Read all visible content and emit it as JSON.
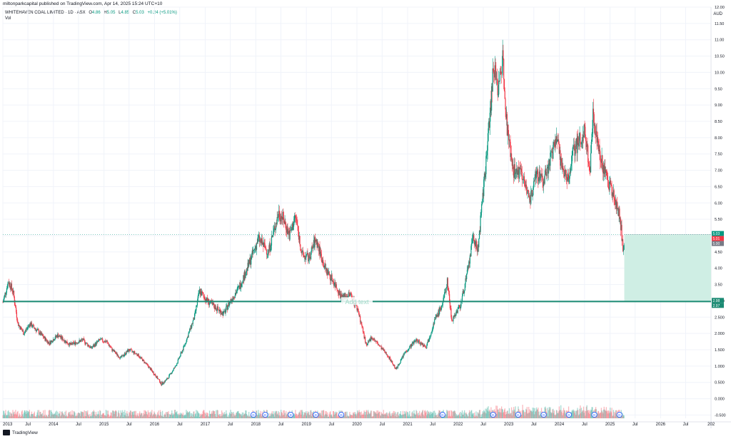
{
  "header": {
    "published": "miltonparkcapital published on TradingView.com, Apr 14, 2025 15:24 UTC+10"
  },
  "legend": {
    "symbol": "WHITEHAVEN COAL LIMITED · 1D · ASX",
    "open_label": "O",
    "open": "4.86",
    "high_label": "H",
    "high": "5.05",
    "low_label": "L",
    "low": "4.85",
    "close_label": "C",
    "close": "5.03",
    "change": "+0.24 (+5.01%)",
    "volume_label": "Vol"
  },
  "currency": "AUD",
  "colors": {
    "up": "#089981",
    "down": "#f23645",
    "line": "#1b8a73",
    "zone": "#cfeee4"
  },
  "icons": [
    "dividend-marker-icon",
    "tradingview-logo-icon"
  ],
  "chart_data": {
    "type": "candlestick",
    "title": "WHITEHAVEN COAL LIMITED · 1D · ASX",
    "x_range": [
      "2013-01-01",
      "2026-12-31"
    ],
    "y_range": [
      -0.6,
      12.0
    ],
    "y_ticks": [
      -0.5,
      0.0,
      0.5,
      1.0,
      1.5,
      2.0,
      2.5,
      3.0,
      3.5,
      4.0,
      4.5,
      5.0,
      5.5,
      6.0,
      6.5,
      7.0,
      7.5,
      8.0,
      8.5,
      9.0,
      9.5,
      10.0,
      10.5,
      11.0,
      11.5,
      12.0
    ],
    "y_tick_labels": [
      "-0.500",
      "0.000",
      "0.500",
      "1.000",
      "1.500",
      "2.000",
      "2.500",
      "3.000",
      "3.50",
      "4.00",
      "4.50",
      "5.00",
      "5.50",
      "6.00",
      "6.50",
      "7.00",
      "7.50",
      "8.00",
      "8.50",
      "9.00",
      "9.50",
      "10.00",
      "10.50",
      "11.00",
      "11.50",
      "12.00"
    ],
    "x_ticks": [
      {
        "date": "2013-01-01",
        "label": "2013"
      },
      {
        "date": "2013-07-01",
        "label": "Jul"
      },
      {
        "date": "2014-01-01",
        "label": "2014"
      },
      {
        "date": "2014-07-01",
        "label": "Jul"
      },
      {
        "date": "2015-01-01",
        "label": "2015"
      },
      {
        "date": "2015-07-01",
        "label": "Jul"
      },
      {
        "date": "2016-01-01",
        "label": "2016"
      },
      {
        "date": "2016-07-01",
        "label": "Jul"
      },
      {
        "date": "2017-01-01",
        "label": "2017"
      },
      {
        "date": "2017-07-01",
        "label": "Jul"
      },
      {
        "date": "2018-01-01",
        "label": "2018"
      },
      {
        "date": "2018-07-01",
        "label": "Jul"
      },
      {
        "date": "2019-01-01",
        "label": "2019"
      },
      {
        "date": "2019-07-01",
        "label": "Jul"
      },
      {
        "date": "2020-01-01",
        "label": "2020"
      },
      {
        "date": "2020-07-01",
        "label": "Jul"
      },
      {
        "date": "2021-01-01",
        "label": "2021"
      },
      {
        "date": "2021-07-01",
        "label": "Jul"
      },
      {
        "date": "2022-01-01",
        "label": "2022"
      },
      {
        "date": "2022-07-01",
        "label": "Jul"
      },
      {
        "date": "2023-01-01",
        "label": "2023"
      },
      {
        "date": "2023-07-01",
        "label": "Jul"
      },
      {
        "date": "2024-01-01",
        "label": "2024"
      },
      {
        "date": "2024-07-01",
        "label": "Jul"
      },
      {
        "date": "2025-01-01",
        "label": "2025"
      },
      {
        "date": "2025-07-01",
        "label": "Jul"
      },
      {
        "date": "2026-01-01",
        "label": "2026"
      },
      {
        "date": "2026-07-01",
        "label": "Jul"
      },
      {
        "date": "2027-01-01",
        "label": "202"
      }
    ],
    "price_path": [
      [
        "2013-01-01",
        2.95
      ],
      [
        "2013-02-10",
        3.6
      ],
      [
        "2013-03-15",
        3.3
      ],
      [
        "2013-04-20",
        2.3
      ],
      [
        "2013-06-01",
        2.0
      ],
      [
        "2013-07-15",
        2.3
      ],
      [
        "2013-09-15",
        2.05
      ],
      [
        "2013-12-01",
        1.7
      ],
      [
        "2014-02-01",
        1.95
      ],
      [
        "2014-05-01",
        1.65
      ],
      [
        "2014-08-01",
        1.8
      ],
      [
        "2014-10-01",
        1.55
      ],
      [
        "2014-12-01",
        1.8
      ],
      [
        "2015-01-20",
        1.75
      ],
      [
        "2015-03-01",
        1.5
      ],
      [
        "2015-05-01",
        1.25
      ],
      [
        "2015-07-01",
        1.5
      ],
      [
        "2015-09-01",
        1.35
      ],
      [
        "2015-11-15",
        1.0
      ],
      [
        "2016-01-10",
        0.7
      ],
      [
        "2016-02-20",
        0.45
      ],
      [
        "2016-04-01",
        0.6
      ],
      [
        "2016-06-01",
        1.0
      ],
      [
        "2016-08-01",
        1.6
      ],
      [
        "2016-10-15",
        2.5
      ],
      [
        "2016-11-20",
        3.3
      ],
      [
        "2017-01-15",
        3.0
      ],
      [
        "2017-03-15",
        2.8
      ],
      [
        "2017-05-15",
        2.6
      ],
      [
        "2017-07-01",
        3.0
      ],
      [
        "2017-09-01",
        3.4
      ],
      [
        "2017-11-01",
        4.0
      ],
      [
        "2018-01-20",
        4.9
      ],
      [
        "2018-04-01",
        4.5
      ],
      [
        "2018-06-15",
        5.7
      ],
      [
        "2018-07-20",
        5.5
      ],
      [
        "2018-09-01",
        5.0
      ],
      [
        "2018-10-15",
        5.6
      ],
      [
        "2018-12-01",
        4.4
      ],
      [
        "2019-01-20",
        4.3
      ],
      [
        "2019-03-10",
        4.9
      ],
      [
        "2019-05-15",
        4.0
      ],
      [
        "2019-07-15",
        3.6
      ],
      [
        "2019-09-15",
        3.1
      ],
      [
        "2019-11-15",
        3.2
      ],
      [
        "2020-01-10",
        2.7
      ],
      [
        "2020-03-10",
        1.6
      ],
      [
        "2020-04-15",
        1.9
      ],
      [
        "2020-06-15",
        1.6
      ],
      [
        "2020-08-15",
        1.3
      ],
      [
        "2020-10-10",
        0.9
      ],
      [
        "2020-12-10",
        1.4
      ],
      [
        "2021-03-01",
        1.8
      ],
      [
        "2021-05-15",
        1.6
      ],
      [
        "2021-07-15",
        2.4
      ],
      [
        "2021-09-10",
        2.9
      ],
      [
        "2021-10-15",
        3.6
      ],
      [
        "2021-11-15",
        2.4
      ],
      [
        "2022-01-20",
        2.9
      ],
      [
        "2022-03-15",
        4.0
      ],
      [
        "2022-04-20",
        5.0
      ],
      [
        "2022-05-20",
        4.5
      ],
      [
        "2022-07-01",
        6.3
      ],
      [
        "2022-08-15",
        8.5
      ],
      [
        "2022-09-15",
        10.3
      ],
      [
        "2022-10-15",
        9.4
      ],
      [
        "2022-11-20",
        10.5
      ],
      [
        "2022-12-20",
        8.3
      ],
      [
        "2023-02-01",
        7.0
      ],
      [
        "2023-04-01",
        6.9
      ],
      [
        "2023-06-01",
        6.0
      ],
      [
        "2023-07-20",
        7.0
      ],
      [
        "2023-09-01",
        6.6
      ],
      [
        "2023-11-01",
        7.4
      ],
      [
        "2023-12-15",
        7.9
      ],
      [
        "2024-01-15",
        7.2
      ],
      [
        "2024-03-01",
        6.7
      ],
      [
        "2024-04-15",
        7.6
      ],
      [
        "2024-05-20",
        7.9
      ],
      [
        "2024-07-01",
        8.2
      ],
      [
        "2024-08-10",
        7.0
      ],
      [
        "2024-09-01",
        8.8
      ],
      [
        "2024-10-01",
        7.9
      ],
      [
        "2024-11-01",
        7.3
      ],
      [
        "2024-12-01",
        6.8
      ],
      [
        "2025-01-15",
        6.4
      ],
      [
        "2025-02-15",
        6.0
      ],
      [
        "2025-03-10",
        5.6
      ],
      [
        "2025-03-25",
        5.1
      ],
      [
        "2025-04-08",
        4.5
      ],
      [
        "2025-04-14",
        5.03
      ]
    ],
    "horizontal_line": {
      "value": 2.98,
      "text": "Add text"
    },
    "shaded_zone": {
      "from": "2025-04-14",
      "to": "2026-12-31",
      "top": 5.03,
      "bottom": 2.98
    },
    "price_labels": [
      "5.03",
      "5.01",
      "5.00",
      "2.98",
      "2.97"
    ],
    "dividend_markers": [
      "2017-12-15",
      "2018-03-10",
      "2018-09-10",
      "2019-03-10",
      "2019-09-10",
      "2021-09-10",
      "2022-09-10",
      "2023-03-10",
      "2023-09-10",
      "2024-03-10",
      "2024-09-10",
      "2025-03-10"
    ],
    "dividend_marker_label": "D",
    "grid": true
  },
  "footer": {
    "brand": "TradingView"
  }
}
